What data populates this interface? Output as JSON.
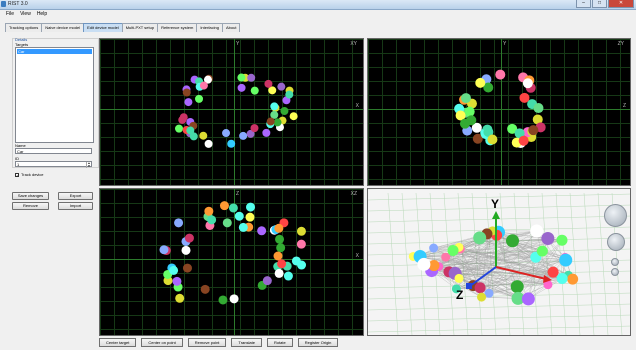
{
  "window": {
    "title": "RIST 3.0",
    "buttons": {
      "minimize": "–",
      "maximize": "□",
      "close": "✕"
    }
  },
  "menu": [
    "File",
    "View",
    "Help"
  ],
  "tabs": [
    {
      "label": "Tracking options",
      "active": false
    },
    {
      "label": "Naive device model",
      "active": false
    },
    {
      "label": "Edit device model",
      "active": true
    },
    {
      "label": "Multi-PXT setup",
      "active": false
    },
    {
      "label": "Reference system",
      "active": false
    },
    {
      "label": "Interfacing",
      "active": false
    },
    {
      "label": "About",
      "active": false
    }
  ],
  "details": {
    "group_label": "Details",
    "targets_label": "Targets",
    "targets": [
      "Car"
    ],
    "name_label": "Name",
    "name_value": "Car",
    "id_label": "ID",
    "id_value": "1",
    "track_device_label": "Track device",
    "track_device_checked": true
  },
  "buttons": {
    "save_changes": "Save changes",
    "export": "Export",
    "remove": "Remove",
    "import": "Import"
  },
  "views": {
    "xy": {
      "label": "XY",
      "axis_v": "Y",
      "axis_h": "X"
    },
    "zy": {
      "label": "ZY",
      "axis_v": "Y",
      "axis_h": "Z"
    },
    "xz": {
      "label": "XZ",
      "axis_v": "Z",
      "axis_h": "X"
    },
    "3d": {
      "axis_y": "Y",
      "axis_z": "Z",
      "axis_x": "X"
    }
  },
  "bottom_buttons": [
    "Center target",
    "Center on point",
    "Remove point",
    "Translate",
    "Rotate",
    "Register Origin"
  ],
  "colors": {
    "active_tab": "#c9def3",
    "grid_line": "#2c7a2c",
    "list_selection": "#3399ff",
    "viewport_bg": "#000000"
  }
}
